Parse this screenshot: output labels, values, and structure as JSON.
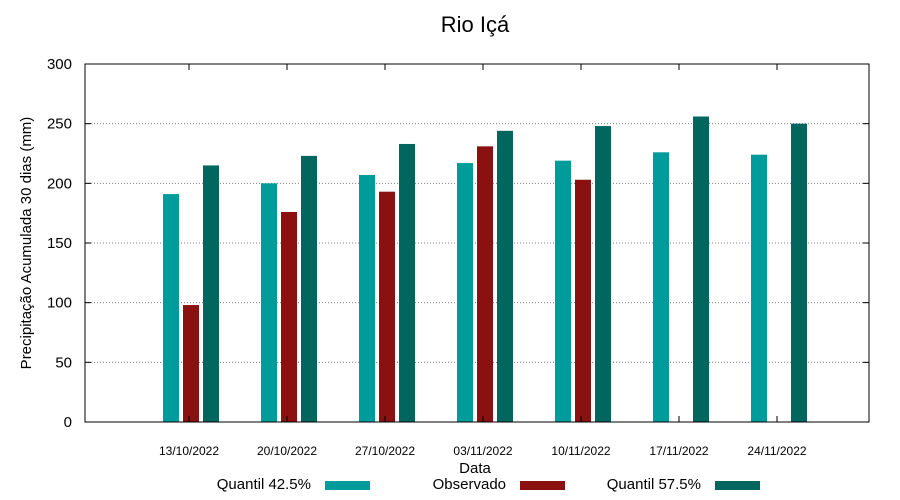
{
  "chart_data": {
    "type": "bar",
    "title": "Rio Içá",
    "xlabel": "Data",
    "ylabel": "Precipitação Acumulada 30 dias (mm)",
    "ylim": [
      0,
      300
    ],
    "yticks": [
      0,
      50,
      100,
      150,
      200,
      250,
      300
    ],
    "grid": true,
    "legend_position": "bottom",
    "categories": [
      "13/10/2022",
      "20/10/2022",
      "27/10/2022",
      "03/11/2022",
      "10/11/2022",
      "17/11/2022",
      "24/11/2022"
    ],
    "series": [
      {
        "name": "Quantil 42.5%",
        "color": "#009c9c",
        "values": [
          191,
          200,
          207,
          217,
          219,
          226,
          224
        ]
      },
      {
        "name": "Observado",
        "color": "#8b1010",
        "values": [
          98,
          176,
          193,
          231,
          203,
          null,
          null
        ]
      },
      {
        "name": "Quantil 57.5%",
        "color": "#00665e",
        "values": [
          215,
          223,
          233,
          244,
          248,
          256,
          250
        ]
      }
    ]
  }
}
